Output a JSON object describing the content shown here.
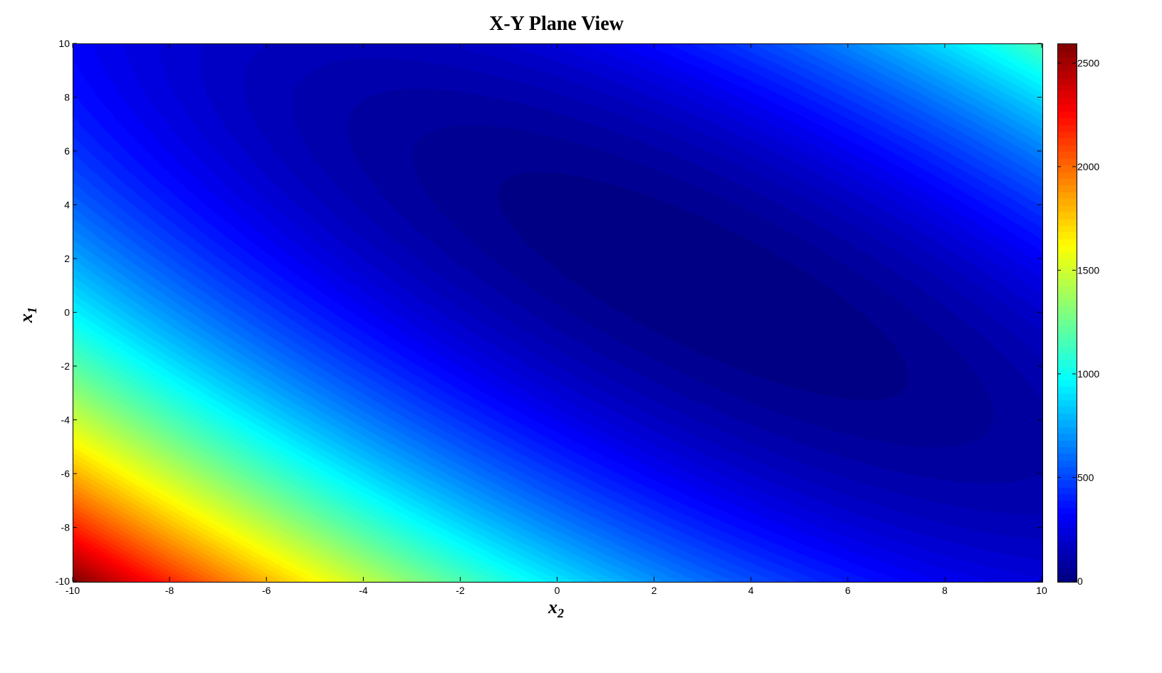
{
  "chart_data": {
    "type": "heatmap",
    "subtype": "filled-contour",
    "title": "X-Y Plane View",
    "xlabel": {
      "base": "x",
      "sub": "2"
    },
    "ylabel": {
      "base": "x",
      "sub": "1"
    },
    "xlim": [
      -10,
      10
    ],
    "ylim": [
      -10,
      10
    ],
    "xticks": [
      "-10",
      "-8",
      "-6",
      "-4",
      "-2",
      "0",
      "2",
      "4",
      "6",
      "8",
      "10"
    ],
    "yticks": [
      "-10",
      "-8",
      "-6",
      "-4",
      "-2",
      "0",
      "2",
      "4",
      "6",
      "8",
      "10"
    ],
    "z_function": "(x1 + 2*x2 - 7)^2 + (2*x1 + x2 - 5)^2",
    "z_range": [
      0,
      2594
    ],
    "contour_levels": 80,
    "colormap": "jet",
    "colorbar": {
      "position": "right",
      "ticks": [
        "0",
        "500",
        "1000",
        "1500",
        "2000",
        "2500"
      ],
      "lim": [
        0,
        2594
      ]
    },
    "grid": false
  }
}
